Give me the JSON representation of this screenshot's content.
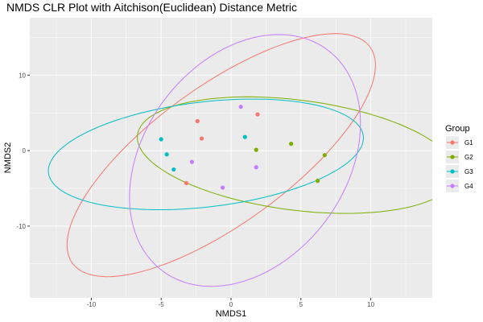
{
  "chart_data": {
    "type": "scatter",
    "title": "NMDS CLR Plot with Aitchison(Euclidean) Distance Metric",
    "xlabel": "NMDS1",
    "ylabel": "NMDS2",
    "xlim": [
      -14.4,
      14.4
    ],
    "ylim": [
      -19.5,
      17.6
    ],
    "x_ticks": [
      -10,
      -5,
      0,
      5,
      10
    ],
    "y_ticks": [
      -10,
      0,
      10
    ],
    "x_tick_labels": [
      "-10",
      "-5",
      "0",
      "5",
      "10"
    ],
    "y_tick_labels": [
      "-10",
      "0",
      "10"
    ],
    "grid": true,
    "legend": {
      "title": "Group",
      "position": "right"
    },
    "series": [
      {
        "name": "G1",
        "color": "#F8766D",
        "points": [
          [
            -2.4,
            3.9
          ],
          [
            -2.1,
            1.6
          ],
          [
            -3.2,
            -4.3
          ],
          [
            1.9,
            4.8
          ]
        ],
        "ellipse": {
          "center": [
            -0.7,
            -0.6
          ],
          "semi_axes": [
            18.4,
            6.5
          ],
          "angle_deg": 58.8
        }
      },
      {
        "name": "G2",
        "color": "#7CAE00",
        "points": [
          [
            1.8,
            0.1
          ],
          [
            4.3,
            0.9
          ],
          [
            6.7,
            -0.6
          ],
          [
            6.2,
            -4.0
          ]
        ],
        "ellipse": {
          "center": [
            4.7,
            -0.6
          ],
          "semi_axes": [
            11.8,
            7.1
          ],
          "angle_deg": -18.7
        }
      },
      {
        "name": "G3",
        "color": "#00BFC4",
        "points": [
          [
            -5.0,
            1.5
          ],
          [
            -4.6,
            -0.5
          ],
          [
            -4.1,
            -2.5
          ],
          [
            1.0,
            1.8
          ]
        ],
        "ellipse": {
          "center": [
            -1.8,
            -0.5
          ],
          "semi_axes": [
            11.6,
            6.8
          ],
          "angle_deg": 16.9
        }
      },
      {
        "name": "G4",
        "color": "#C77CFF",
        "points": [
          [
            0.7,
            5.8
          ],
          [
            -2.8,
            -1.5
          ],
          [
            -0.6,
            -4.9
          ],
          [
            1.8,
            -2.2
          ]
        ],
        "ellipse": {
          "center": [
            1.0,
            -1.3
          ],
          "semi_axes": [
            16.9,
            7.8
          ],
          "angle_deg": 79.5
        }
      }
    ]
  }
}
